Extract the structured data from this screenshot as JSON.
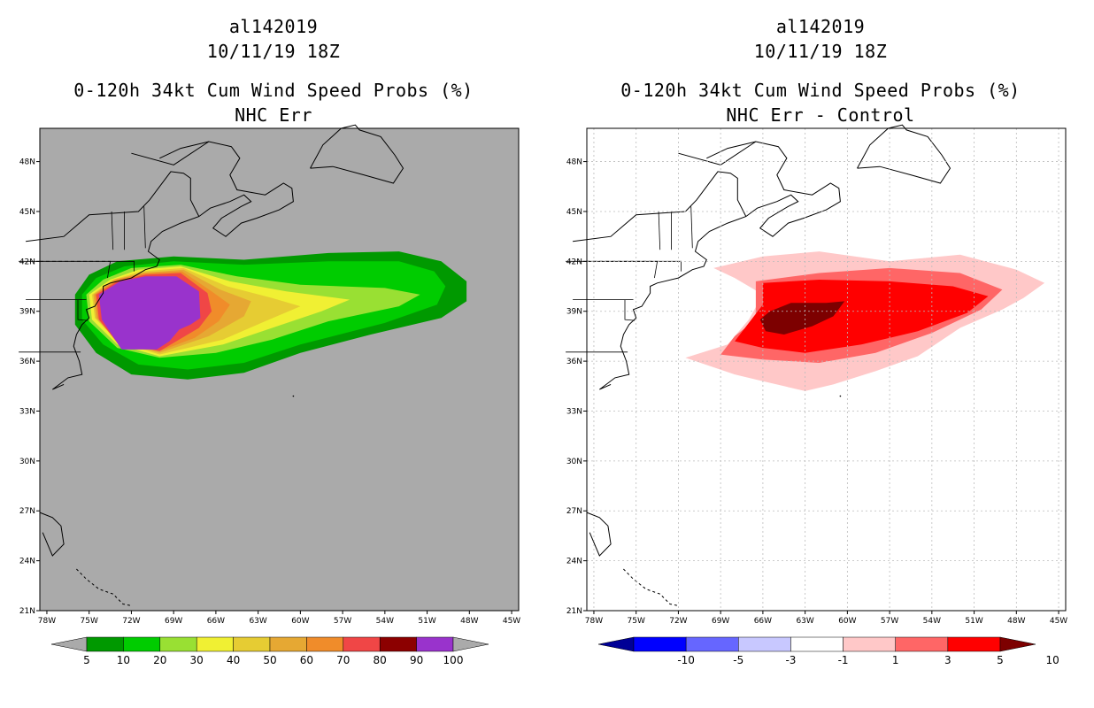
{
  "chart_data": [
    {
      "type": "heatmap",
      "title": [
        "al142019",
        "10/11/19 18Z",
        "0-120h 34kt Cum Wind Speed Probs (%)",
        "NHC Err"
      ],
      "x_ticks": [
        "78W",
        "75W",
        "72W",
        "69W",
        "66W",
        "63W",
        "60W",
        "57W",
        "54W",
        "51W",
        "48W",
        "45W"
      ],
      "y_ticks": [
        "48N",
        "45N",
        "42N",
        "39N",
        "36N",
        "33N",
        "30N",
        "27N",
        "24N",
        "21N"
      ],
      "xlim": [
        -78,
        -45
      ],
      "ylim": [
        21,
        50
      ],
      "background": "#aaaaaa",
      "grid": false,
      "colorbar": {
        "levels": [
          "5",
          "10",
          "20",
          "30",
          "40",
          "50",
          "60",
          "70",
          "80",
          "90",
          "100"
        ],
        "colors": [
          "#009900",
          "#00cc00",
          "#99e033",
          "#f0f033",
          "#e6cc33",
          "#e6a833",
          "#f08c2a",
          "#f04646",
          "#8c0000",
          "#9933cc"
        ],
        "under_color": "#aaaaaa",
        "over_color": "#aaaaaa"
      },
      "contours": [
        {
          "level": 5,
          "color": "#009900"
        },
        {
          "level": 10,
          "color": "#00cc00"
        },
        {
          "level": 20,
          "color": "#99e033"
        },
        {
          "level": 30,
          "color": "#f0f033"
        },
        {
          "level": 40,
          "color": "#e6cc33"
        },
        {
          "level": 50,
          "color": "#e6a833"
        },
        {
          "level": 60,
          "color": "#f08c2a"
        },
        {
          "level": 70,
          "color": "#f04646"
        },
        {
          "level": 90,
          "color": "#9933cc"
        }
      ]
    },
    {
      "type": "heatmap",
      "title": [
        "al142019",
        "10/11/19 18Z",
        "0-120h 34kt Cum Wind Speed Probs (%)",
        "NHC Err - Control"
      ],
      "x_ticks": [
        "78W",
        "75W",
        "72W",
        "69W",
        "66W",
        "63W",
        "60W",
        "57W",
        "54W",
        "51W",
        "48W",
        "45W"
      ],
      "y_ticks": [
        "48N",
        "45N",
        "42N",
        "39N",
        "36N",
        "33N",
        "30N",
        "27N",
        "24N",
        "21N"
      ],
      "xlim": [
        -78,
        -45
      ],
      "ylim": [
        21,
        50
      ],
      "background": "#ffffff",
      "grid": true,
      "colorbar": {
        "levels": [
          "-10",
          "-5",
          "-3",
          "-1",
          "1",
          "3",
          "5",
          "10"
        ],
        "colors": [
          "#0000ff",
          "#6666ff",
          "#c8c8ff",
          "#ffffff",
          "#ffc8c8",
          "#ff6666",
          "#ff0000"
        ],
        "under_color": "#000096",
        "over_color": "#7d0000"
      },
      "contours": [
        {
          "level": 1,
          "color": "#ffc8c8"
        },
        {
          "level": 3,
          "color": "#ff6666"
        },
        {
          "level": 5,
          "color": "#ff0000"
        },
        {
          "level": 10,
          "color": "#7d0000"
        }
      ]
    }
  ]
}
